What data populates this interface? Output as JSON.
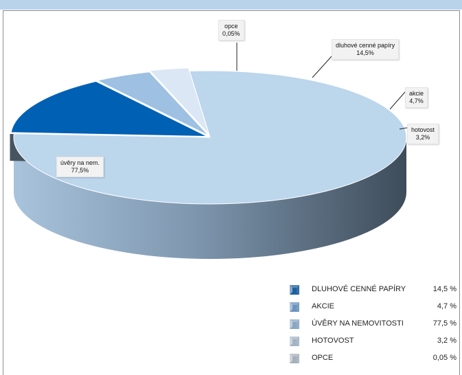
{
  "chart_data": {
    "type": "pie",
    "title": "",
    "slices": [
      {
        "label": "úvěry na nem.",
        "value": 77.5,
        "display": "77,5%",
        "color": "#bcd6ec"
      },
      {
        "label": "opce",
        "value": 0.05,
        "display": "0,05%",
        "color": "#2f6ea8"
      },
      {
        "label": "dluhové cenné papíry",
        "value": 14.5,
        "display": "14,5%",
        "color": "#0060b4"
      },
      {
        "label": "akcie",
        "value": 4.7,
        "display": "4,7%",
        "color": "#9dc0e3"
      },
      {
        "label": "hotovost",
        "value": 3.2,
        "display": "3,2%",
        "color": "#dbe7f4"
      }
    ],
    "legend": [
      {
        "label": "DLUHOVÉ CENNÉ PAPÍRY",
        "value": "14,5 %",
        "swatch": "#1f5f9f"
      },
      {
        "label": "AKCIE",
        "value": "4,7 %",
        "swatch": "#6b93bb"
      },
      {
        "label": "ÚVĚRY NA NEMOVITOSTI",
        "value": "77,5 %",
        "swatch": "#8aa6c2"
      },
      {
        "label": "HOTOVOST",
        "value": "3,2 %",
        "swatch": "#a3b3c3"
      },
      {
        "label": "OPCE",
        "value": "0,05 %",
        "swatch": "#a6b0ba"
      }
    ],
    "legend_position": "bottom-right"
  }
}
